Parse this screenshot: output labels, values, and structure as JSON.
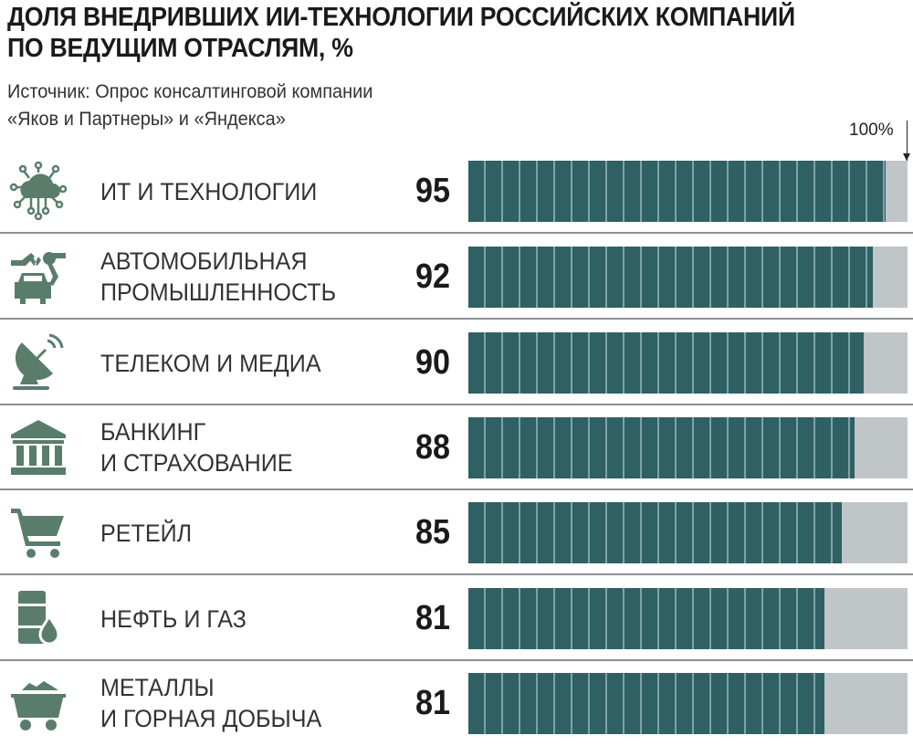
{
  "chart_data": {
    "type": "bar",
    "title": "ДОЛЯ ВНЕДРИВШИХ ИИ-ТЕХНОЛОГИИ РОССИЙСКИХ КОМПАНИЙ ПО ВЕДУЩИМ ОТРАСЛЯМ, %",
    "title_lines": [
      "ДОЛЯ ВНЕДРИВШИХ ИИ-ТЕХНОЛОГИИ РОССИЙСКИХ КОМПАНИЙ",
      "ПО ВЕДУЩИМ ОТРАСЛЯМ, %"
    ],
    "source_lines": [
      "Источник: Опрос консалтинговой компании",
      "«Яков и Партнеры» и «Яндекса»"
    ],
    "reference_label": "100%",
    "xlim": [
      0,
      100
    ],
    "categories": [
      {
        "lines": [
          "ИТ И ТЕХНОЛОГИИ"
        ],
        "icon": "cloud-circuit-icon"
      },
      {
        "lines": [
          "АВТОМОБИЛЬНАЯ",
          "ПРОМЫШЛЕННОСТЬ"
        ],
        "icon": "robot-arm-car-icon"
      },
      {
        "lines": [
          "ТЕЛЕКОМ И МЕДИА"
        ],
        "icon": "satellite-dish-icon"
      },
      {
        "lines": [
          "БАНКИНГ",
          "И СТРАХОВАНИЕ"
        ],
        "icon": "bank-icon"
      },
      {
        "lines": [
          "РЕТЕЙЛ"
        ],
        "icon": "shopping-cart-icon"
      },
      {
        "lines": [
          "НЕФТЬ И ГАЗ"
        ],
        "icon": "oil-barrel-icon"
      },
      {
        "lines": [
          "МЕТАЛЛЫ",
          "И ГОРНАЯ ДОБЫЧА"
        ],
        "icon": "mine-cart-icon"
      }
    ],
    "values": [
      95,
      92,
      90,
      88,
      85,
      81,
      81
    ],
    "colors": {
      "bar": "#2f6063",
      "track": "#c0c5c8",
      "icon": "#5a7d6b"
    }
  }
}
